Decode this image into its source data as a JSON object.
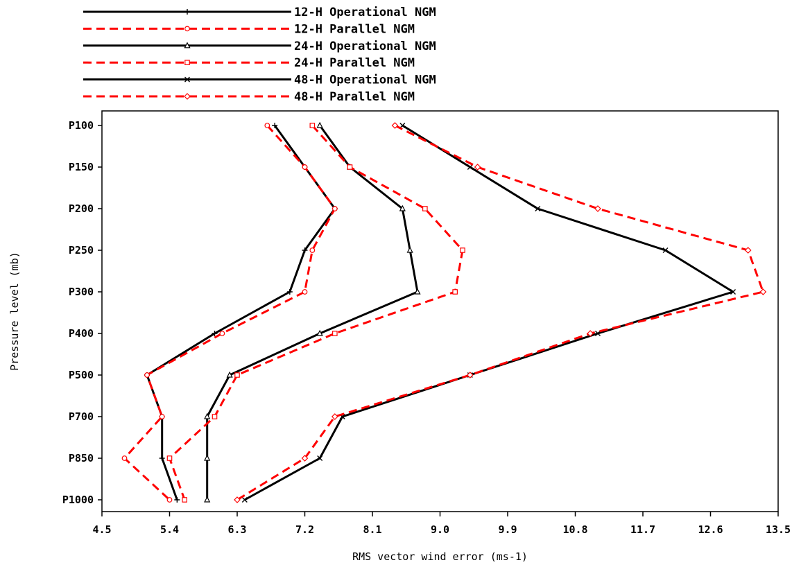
{
  "chart_data": {
    "type": "line",
    "orientation": "vertical-profile",
    "xlabel": "RMS vector wind error (ms-1)",
    "ylabel": "Pressure level (mb)",
    "xlim": [
      4.5,
      13.5
    ],
    "x_ticks": [
      "4.5",
      "5.4",
      "6.3",
      "7.2",
      "8.1",
      "9.0",
      "9.9",
      "10.8",
      "11.7",
      "12.6",
      "13.5"
    ],
    "categories": [
      "P100",
      "P150",
      "P200",
      "P250",
      "P300",
      "P400",
      "P500",
      "P700",
      "P850",
      "P1000"
    ],
    "legend_position": "top",
    "grid": false,
    "series": [
      {
        "name": "12-H Operational NGM",
        "color": "#000000",
        "dash": "solid",
        "marker": "plus",
        "values": [
          6.8,
          7.2,
          7.6,
          7.2,
          7.0,
          6.0,
          5.1,
          5.3,
          5.3,
          5.5
        ]
      },
      {
        "name": "12-H Parallel NGM",
        "color": "#ff0000",
        "dash": "dashed",
        "marker": "circle",
        "values": [
          6.7,
          7.2,
          7.6,
          7.3,
          7.2,
          6.1,
          5.1,
          5.3,
          4.8,
          5.4
        ]
      },
      {
        "name": "24-H Operational NGM",
        "color": "#000000",
        "dash": "solid",
        "marker": "triangle",
        "values": [
          7.4,
          7.8,
          8.5,
          8.6,
          8.7,
          7.4,
          6.2,
          5.9,
          5.9,
          5.9
        ]
      },
      {
        "name": "24-H Parallel NGM",
        "color": "#ff0000",
        "dash": "dashed",
        "marker": "square",
        "values": [
          7.3,
          7.8,
          8.8,
          9.3,
          9.2,
          7.6,
          6.3,
          6.0,
          5.4,
          5.6
        ]
      },
      {
        "name": "48-H Operational NGM",
        "color": "#000000",
        "dash": "solid",
        "marker": "x",
        "values": [
          8.5,
          9.4,
          10.3,
          12.0,
          12.9,
          11.1,
          9.4,
          7.7,
          7.4,
          6.4
        ]
      },
      {
        "name": "48-H Parallel NGM",
        "color": "#ff0000",
        "dash": "dashed",
        "marker": "diamond",
        "values": [
          8.4,
          9.5,
          11.1,
          13.1,
          13.3,
          11.0,
          9.4,
          7.6,
          7.2,
          6.3
        ]
      }
    ]
  }
}
